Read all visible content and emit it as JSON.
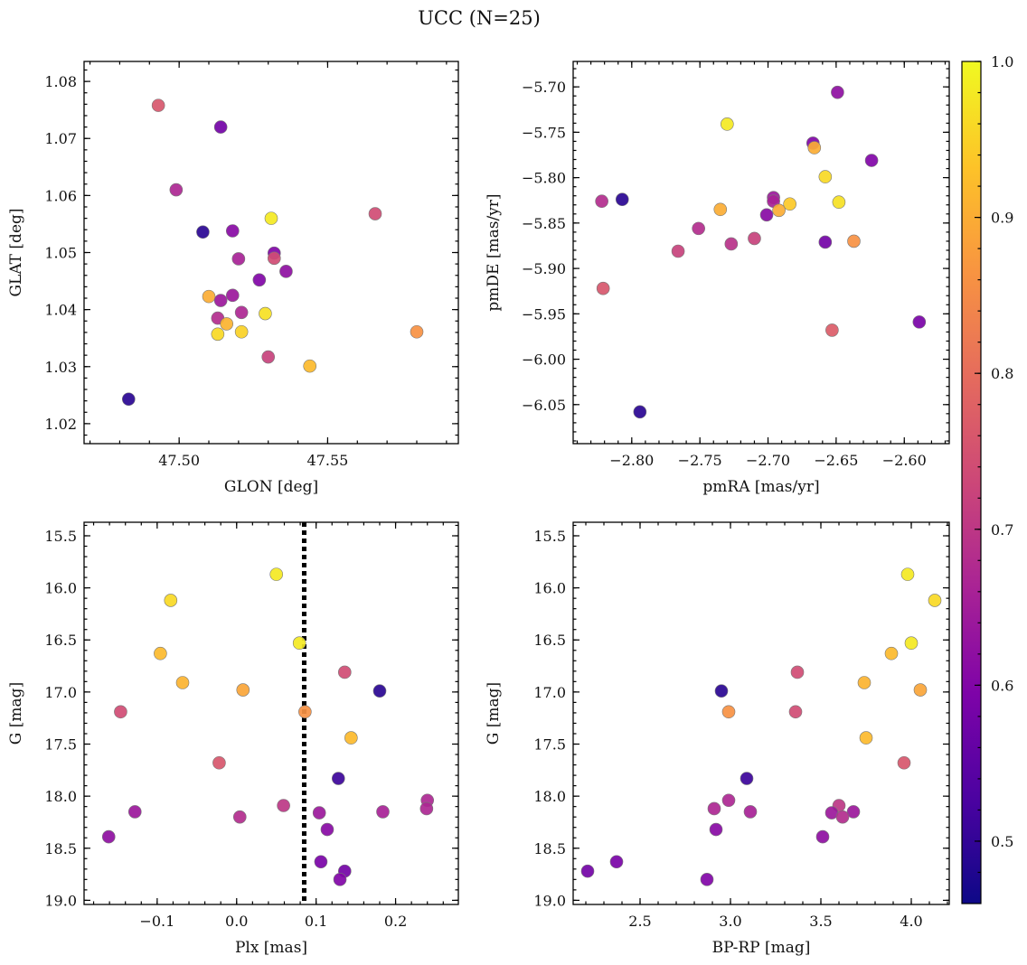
{
  "figure": {
    "title": "UCC (N=25)"
  },
  "colorbar": {
    "range": [
      0.46,
      1.0
    ],
    "ticks": [
      0.5,
      0.6,
      0.7,
      0.8,
      0.9,
      1.0
    ],
    "tick_labels": [
      "0.5",
      "0.6",
      "0.7",
      "0.8",
      "0.9",
      "1.0"
    ],
    "colormap": "plasma"
  },
  "chart_data": [
    {
      "type": "scatter",
      "id": "glon-glat",
      "xlabel": "GLON [deg]",
      "ylabel": "GLAT [deg]",
      "xlim": [
        47.468,
        47.594
      ],
      "ylim": [
        1.0165,
        1.0835
      ],
      "xticks": [
        47.5,
        47.55
      ],
      "xtick_labels": [
        "47.50",
        "47.55"
      ],
      "yticks": [
        1.02,
        1.03,
        1.04,
        1.05,
        1.06,
        1.07,
        1.08
      ],
      "ytick_labels": [
        "1.02",
        "1.03",
        "1.04",
        "1.05",
        "1.06",
        "1.07",
        "1.08"
      ],
      "points": [
        {
          "x": 47.493,
          "y": 1.0758,
          "c": 0.76
        },
        {
          "x": 47.514,
          "y": 1.072,
          "c": 0.58
        },
        {
          "x": 47.499,
          "y": 1.061,
          "c": 0.67
        },
        {
          "x": 47.531,
          "y": 1.056,
          "c": 0.98
        },
        {
          "x": 47.508,
          "y": 1.0536,
          "c": 0.49
        },
        {
          "x": 47.518,
          "y": 1.0538,
          "c": 0.61
        },
        {
          "x": 47.566,
          "y": 1.0568,
          "c": 0.74
        },
        {
          "x": 47.532,
          "y": 1.0499,
          "c": 0.6
        },
        {
          "x": 47.532,
          "y": 1.049,
          "c": 0.74
        },
        {
          "x": 47.52,
          "y": 1.0489,
          "c": 0.66
        },
        {
          "x": 47.536,
          "y": 1.0467,
          "c": 0.62
        },
        {
          "x": 47.527,
          "y": 1.0452,
          "c": 0.6
        },
        {
          "x": 47.51,
          "y": 1.0423,
          "c": 0.9
        },
        {
          "x": 47.518,
          "y": 1.0425,
          "c": 0.64
        },
        {
          "x": 47.514,
          "y": 1.0416,
          "c": 0.64
        },
        {
          "x": 47.521,
          "y": 1.0395,
          "c": 0.67
        },
        {
          "x": 47.529,
          "y": 1.0393,
          "c": 0.97
        },
        {
          "x": 47.513,
          "y": 1.0385,
          "c": 0.68
        },
        {
          "x": 47.516,
          "y": 1.0375,
          "c": 0.91
        },
        {
          "x": 47.513,
          "y": 1.0357,
          "c": 0.96
        },
        {
          "x": 47.521,
          "y": 1.0361,
          "c": 0.95
        },
        {
          "x": 47.58,
          "y": 1.0361,
          "c": 0.86
        },
        {
          "x": 47.53,
          "y": 1.0317,
          "c": 0.72
        },
        {
          "x": 47.544,
          "y": 1.0301,
          "c": 0.92
        },
        {
          "x": 47.483,
          "y": 1.0243,
          "c": 0.49
        }
      ]
    },
    {
      "type": "scatter",
      "id": "pmra-pmde",
      "xlabel": "pmRA [mas/yr]",
      "ylabel": "pmDE [mas/yr]",
      "xlim": [
        -2.843,
        -2.567
      ],
      "ylim": [
        -6.093,
        -5.672
      ],
      "xticks": [
        -2.8,
        -2.75,
        -2.7,
        -2.65,
        -2.6
      ],
      "xtick_labels": [
        "−2.80",
        "−2.75",
        "−2.70",
        "−2.65",
        "−2.60"
      ],
      "yticks": [
        -6.05,
        -6.0,
        -5.95,
        -5.9,
        -5.85,
        -5.8,
        -5.75,
        -5.7
      ],
      "ytick_labels": [
        "−6.05",
        "−6.00",
        "−5.95",
        "−5.90",
        "−5.85",
        "−5.80",
        "−5.75",
        "−5.70"
      ],
      "points": [
        {
          "x": -2.649,
          "y": -5.706,
          "c": 0.62
        },
        {
          "x": -2.73,
          "y": -5.741,
          "c": 0.98
        },
        {
          "x": -2.667,
          "y": -5.762,
          "c": 0.6
        },
        {
          "x": -2.666,
          "y": -5.767,
          "c": 0.9
        },
        {
          "x": -2.624,
          "y": -5.781,
          "c": 0.6
        },
        {
          "x": -2.658,
          "y": -5.799,
          "c": 0.96
        },
        {
          "x": -2.822,
          "y": -5.826,
          "c": 0.68
        },
        {
          "x": -2.807,
          "y": -5.824,
          "c": 0.49
        },
        {
          "x": -2.696,
          "y": -5.822,
          "c": 0.64
        },
        {
          "x": -2.696,
          "y": -5.826,
          "c": 0.66
        },
        {
          "x": -2.684,
          "y": -5.829,
          "c": 0.94
        },
        {
          "x": -2.648,
          "y": -5.827,
          "c": 0.97
        },
        {
          "x": -2.735,
          "y": -5.835,
          "c": 0.9
        },
        {
          "x": -2.701,
          "y": -5.841,
          "c": 0.61
        },
        {
          "x": -2.692,
          "y": -5.836,
          "c": 0.9
        },
        {
          "x": -2.751,
          "y": -5.856,
          "c": 0.68
        },
        {
          "x": -2.71,
          "y": -5.867,
          "c": 0.72
        },
        {
          "x": -2.658,
          "y": -5.871,
          "c": 0.58
        },
        {
          "x": -2.637,
          "y": -5.87,
          "c": 0.86
        },
        {
          "x": -2.727,
          "y": -5.873,
          "c": 0.69
        },
        {
          "x": -2.766,
          "y": -5.881,
          "c": 0.72
        },
        {
          "x": -2.821,
          "y": -5.922,
          "c": 0.76
        },
        {
          "x": -2.653,
          "y": -5.968,
          "c": 0.77
        },
        {
          "x": -2.589,
          "y": -5.959,
          "c": 0.59
        },
        {
          "x": -2.794,
          "y": -6.058,
          "c": 0.49
        }
      ]
    },
    {
      "type": "scatter",
      "id": "plx-g",
      "xlabel": "Plx [mas]",
      "ylabel": "G [mag]",
      "xlim": [
        -0.192,
        0.279
      ],
      "ylim": [
        19.04,
        15.37
      ],
      "y_inverted": true,
      "vline_x": 0.085,
      "xticks": [
        -0.1,
        0.0,
        0.1,
        0.2
      ],
      "xtick_labels": [
        "−0.1",
        "0.0",
        "0.1",
        "0.2"
      ],
      "yticks": [
        15.5,
        16.0,
        16.5,
        17.0,
        17.5,
        18.0,
        18.5,
        19.0
      ],
      "ytick_labels": [
        "15.5",
        "16.0",
        "16.5",
        "17.0",
        "17.5",
        "18.0",
        "18.5",
        "19.0"
      ],
      "points": [
        {
          "x": 0.05,
          "y": 15.87,
          "c": 0.98
        },
        {
          "x": -0.083,
          "y": 16.12,
          "c": 0.96
        },
        {
          "x": -0.096,
          "y": 16.63,
          "c": 0.92
        },
        {
          "x": 0.079,
          "y": 16.53,
          "c": 0.98
        },
        {
          "x": 0.136,
          "y": 16.81,
          "c": 0.74
        },
        {
          "x": -0.068,
          "y": 16.91,
          "c": 0.91
        },
        {
          "x": 0.008,
          "y": 16.98,
          "c": 0.89
        },
        {
          "x": 0.18,
          "y": 16.99,
          "c": 0.49
        },
        {
          "x": -0.146,
          "y": 17.19,
          "c": 0.74
        },
        {
          "x": 0.086,
          "y": 17.19,
          "c": 0.86
        },
        {
          "x": 0.144,
          "y": 17.44,
          "c": 0.92
        },
        {
          "x": -0.022,
          "y": 17.68,
          "c": 0.76
        },
        {
          "x": 0.128,
          "y": 17.83,
          "c": 0.51
        },
        {
          "x": 0.24,
          "y": 18.04,
          "c": 0.67
        },
        {
          "x": 0.059,
          "y": 18.09,
          "c": 0.7
        },
        {
          "x": 0.239,
          "y": 18.12,
          "c": 0.67
        },
        {
          "x": -0.128,
          "y": 18.15,
          "c": 0.64
        },
        {
          "x": 0.184,
          "y": 18.15,
          "c": 0.66
        },
        {
          "x": 0.104,
          "y": 18.16,
          "c": 0.64
        },
        {
          "x": 0.004,
          "y": 18.2,
          "c": 0.68
        },
        {
          "x": 0.114,
          "y": 18.32,
          "c": 0.61
        },
        {
          "x": -0.161,
          "y": 18.39,
          "c": 0.62
        },
        {
          "x": 0.106,
          "y": 18.63,
          "c": 0.59
        },
        {
          "x": 0.136,
          "y": 18.72,
          "c": 0.58
        },
        {
          "x": 0.13,
          "y": 18.8,
          "c": 0.6
        }
      ]
    },
    {
      "type": "scatter",
      "id": "bprp-g",
      "xlabel": "BP-RP [mag]",
      "ylabel": "G [mag]",
      "xlim": [
        2.13,
        4.21
      ],
      "ylim": [
        19.04,
        15.37
      ],
      "y_inverted": true,
      "xticks": [
        2.5,
        3.0,
        3.5,
        4.0
      ],
      "xtick_labels": [
        "2.5",
        "3.0",
        "3.5",
        "4.0"
      ],
      "yticks": [
        15.5,
        16.0,
        16.5,
        17.0,
        17.5,
        18.0,
        18.5,
        19.0
      ],
      "ytick_labels": [
        "15.5",
        "16.0",
        "16.5",
        "17.0",
        "17.5",
        "18.0",
        "18.5",
        "19.0"
      ],
      "points": [
        {
          "x": 3.98,
          "y": 15.87,
          "c": 0.98
        },
        {
          "x": 4.13,
          "y": 16.12,
          "c": 0.96
        },
        {
          "x": 3.89,
          "y": 16.63,
          "c": 0.92
        },
        {
          "x": 4.0,
          "y": 16.53,
          "c": 0.98
        },
        {
          "x": 3.37,
          "y": 16.81,
          "c": 0.74
        },
        {
          "x": 3.74,
          "y": 16.91,
          "c": 0.91
        },
        {
          "x": 4.05,
          "y": 16.98,
          "c": 0.89
        },
        {
          "x": 2.95,
          "y": 16.99,
          "c": 0.49
        },
        {
          "x": 3.36,
          "y": 17.19,
          "c": 0.74
        },
        {
          "x": 2.99,
          "y": 17.19,
          "c": 0.86
        },
        {
          "x": 3.75,
          "y": 17.44,
          "c": 0.92
        },
        {
          "x": 3.96,
          "y": 17.68,
          "c": 0.76
        },
        {
          "x": 3.09,
          "y": 17.83,
          "c": 0.51
        },
        {
          "x": 2.99,
          "y": 18.04,
          "c": 0.67
        },
        {
          "x": 3.6,
          "y": 18.09,
          "c": 0.7
        },
        {
          "x": 2.91,
          "y": 18.12,
          "c": 0.67
        },
        {
          "x": 3.68,
          "y": 18.15,
          "c": 0.64
        },
        {
          "x": 3.11,
          "y": 18.15,
          "c": 0.66
        },
        {
          "x": 3.56,
          "y": 18.16,
          "c": 0.64
        },
        {
          "x": 3.62,
          "y": 18.2,
          "c": 0.68
        },
        {
          "x": 2.92,
          "y": 18.32,
          "c": 0.61
        },
        {
          "x": 3.51,
          "y": 18.39,
          "c": 0.62
        },
        {
          "x": 2.37,
          "y": 18.63,
          "c": 0.59
        },
        {
          "x": 2.21,
          "y": 18.72,
          "c": 0.58
        },
        {
          "x": 2.87,
          "y": 18.8,
          "c": 0.6
        }
      ]
    }
  ]
}
